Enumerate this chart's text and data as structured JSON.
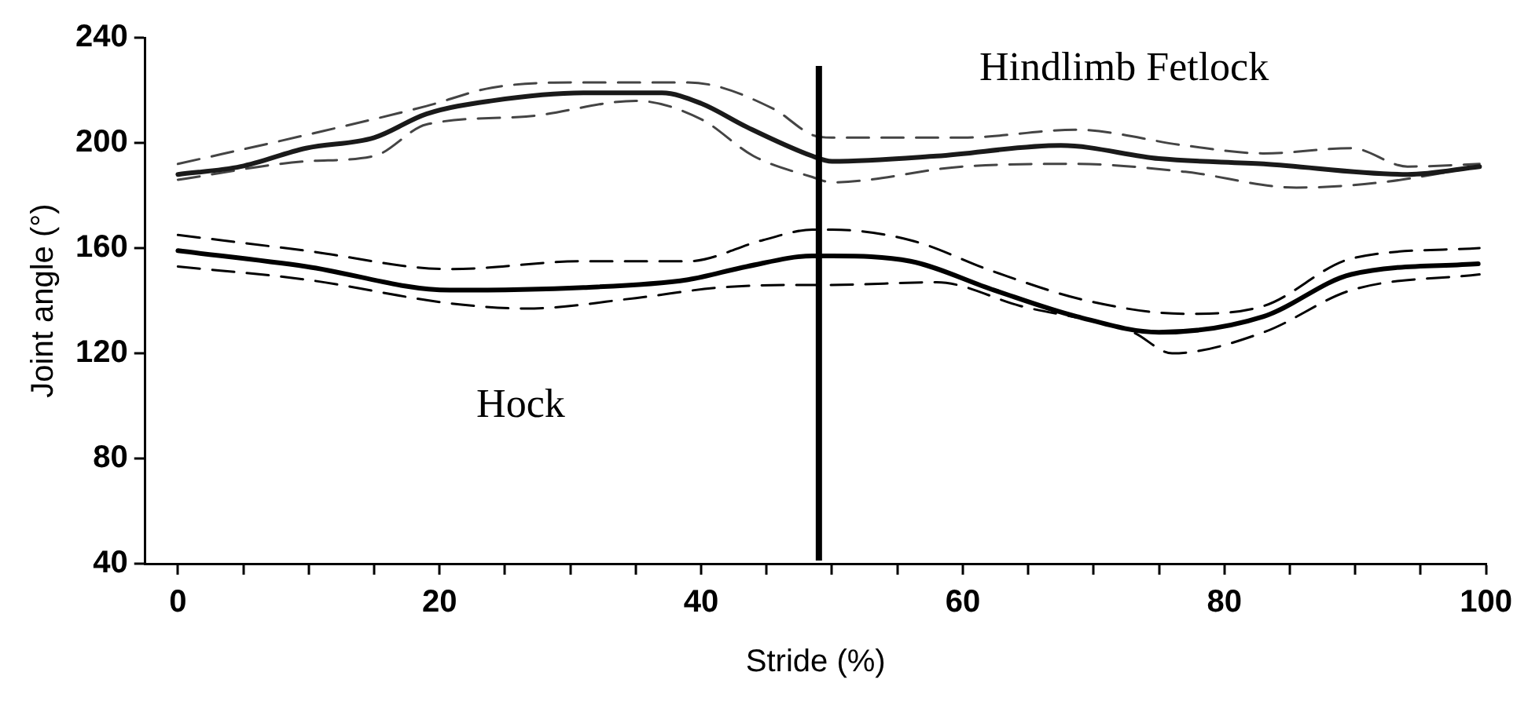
{
  "chart_data": {
    "type": "line",
    "xlabel": "Stride (%)",
    "ylabel": "Joint angle (°)",
    "xlim": [
      -2.5,
      100
    ],
    "ylim": [
      40,
      240
    ],
    "xticks": [
      0,
      {
        "value": 5,
        "label": null
      },
      {
        "value": 10,
        "label": null
      },
      {
        "value": 15,
        "label": null
      },
      20,
      {
        "value": 25,
        "label": null
      },
      {
        "value": 30,
        "label": null
      },
      {
        "value": 35,
        "label": null
      },
      40,
      {
        "value": 45,
        "label": null
      },
      {
        "value": 50,
        "label": null
      },
      {
        "value": 55,
        "label": null
      },
      60,
      {
        "value": 65,
        "label": null
      },
      {
        "value": 70,
        "label": null
      },
      {
        "value": 75,
        "label": null
      },
      80,
      {
        "value": 85,
        "label": null
      },
      {
        "value": 90,
        "label": null
      },
      {
        "value": 95,
        "label": null
      },
      100
    ],
    "yticks": [
      40,
      80,
      120,
      160,
      200,
      240
    ],
    "grid": false,
    "legend": false,
    "marker": "none",
    "series": [
      {
        "color": "#1a1a1a",
        "line_style": "solid",
        "x": [
          0,
          4.8,
          9.8,
          15,
          19,
          24,
          31,
          37,
          40,
          43.5,
          48.5,
          50,
          58,
          67.5,
          75,
          83,
          94,
          99.5
        ],
        "values": [
          188,
          191,
          198,
          202,
          211,
          216,
          219,
          219,
          215,
          206,
          195,
          193,
          195,
          199,
          194,
          192,
          188,
          191
        ]
      },
      {
        "color": "#444444",
        "line_style": "dashed",
        "x": [
          0,
          9.8,
          19,
          24,
          31,
          39,
          45.5,
          48.5,
          50,
          60,
          68.6,
          77,
          83,
          89.7,
          94,
          99.5
        ],
        "values": [
          192,
          203,
          214,
          221,
          223,
          223,
          213,
          203,
          202,
          202,
          205,
          199,
          196,
          198,
          191,
          192
        ]
      },
      {
        "color": "#444444",
        "line_style": "dashed",
        "x": [
          0,
          9.8,
          15,
          19,
          26.6,
          35,
          40,
          44,
          48.5,
          50,
          60,
          68.6,
          77,
          85.5,
          92,
          99.5
        ],
        "values": [
          186,
          193,
          195,
          207,
          210,
          216,
          209,
          195,
          187,
          185,
          191,
          192,
          189,
          183,
          185,
          191
        ]
      },
      {
        "color": "#000000",
        "line_style": "solid",
        "x": [
          0,
          9.8,
          20.8,
          31,
          39,
          43.5,
          48.5,
          50,
          56,
          62.4,
          68.7,
          75,
          83,
          89.7,
          99.4
        ],
        "values": [
          159,
          153,
          144,
          145,
          148,
          153,
          157,
          157,
          155,
          144,
          134,
          128,
          134,
          150,
          154
        ]
      },
      {
        "color": "#000000",
        "line_style": "dashed",
        "x": [
          0,
          9.8,
          20.8,
          31,
          39,
          44.7,
          48.5,
          50,
          56,
          62.4,
          69.5,
          77,
          83,
          89.7,
          99.5
        ],
        "values": [
          165,
          159,
          152,
          155,
          155,
          163,
          167,
          167,
          163,
          151,
          140,
          135,
          138,
          156,
          160
        ]
      },
      {
        "color": "#000000",
        "line_style": "dashed",
        "x": [
          0,
          9.8,
          20.8,
          26.6,
          35,
          41.4,
          48.5,
          50,
          58,
          64.4,
          73,
          76,
          83,
          89.7,
          99.5
        ],
        "values": [
          153,
          148,
          139,
          137,
          141,
          145,
          146,
          146,
          147,
          138,
          128,
          120,
          128,
          144,
          150
        ]
      }
    ],
    "ref_lines": [
      {
        "axis": "x",
        "value": 49,
        "color": "#000000"
      }
    ],
    "annotations": [
      "Hindlimb Fetlock",
      "Hock"
    ]
  }
}
